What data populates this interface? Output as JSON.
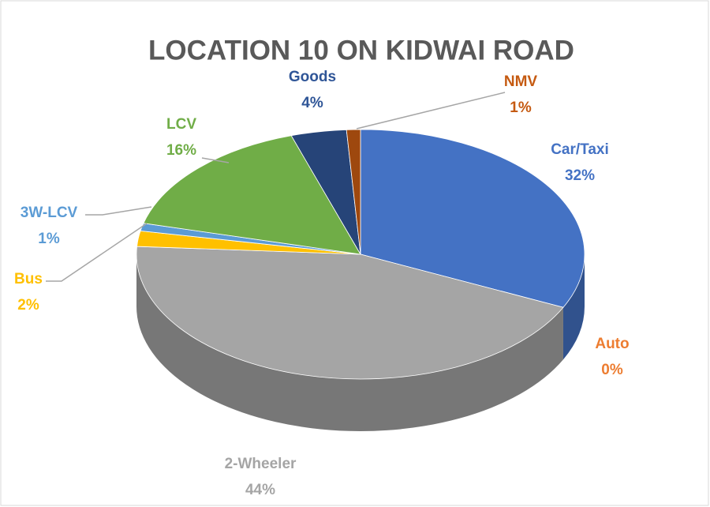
{
  "chart_data": {
    "type": "pie3d",
    "title": "LOCATION 10 ON KIDWAI ROAD",
    "categories": [
      "Car/Taxi",
      "Auto",
      "2-Wheeler",
      "Bus",
      "3W-LCV",
      "LCV",
      "Goods",
      "NMV"
    ],
    "values": [
      32,
      0,
      44,
      2,
      1,
      16,
      4,
      1
    ],
    "value_labels": [
      "32%",
      "0%",
      "44%",
      "2%",
      "1%",
      "16%",
      "4%",
      "1%"
    ],
    "colors": [
      "#4472c4",
      "#ed7d31",
      "#a5a5a5",
      "#ffc000",
      "#5b9bd5",
      "#70ad47",
      "#264478",
      "#9e480e"
    ]
  }
}
